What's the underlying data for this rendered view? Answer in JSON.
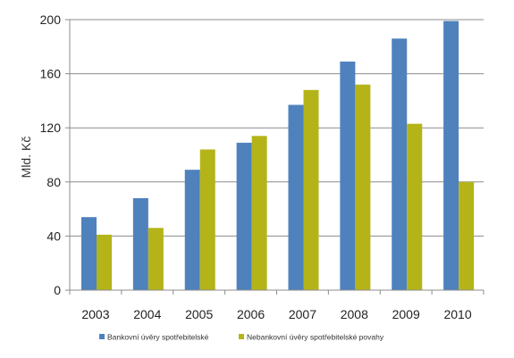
{
  "chart_data": {
    "type": "bar",
    "title": "",
    "xlabel": "",
    "ylabel": "Mld. Kč",
    "categories": [
      "2003",
      "2004",
      "2005",
      "2006",
      "2007",
      "2008",
      "2009",
      "2010"
    ],
    "series": [
      {
        "name": "Bankovní úvěry spotřebitelské",
        "color": "#4F81BD",
        "values": [
          54,
          68,
          89,
          109,
          137,
          169,
          186,
          199
        ]
      },
      {
        "name": "Nebankovní úvěry spotřebitelské povahy",
        "color": "#B4B418",
        "values": [
          41,
          46,
          104,
          114,
          148,
          152,
          123,
          80
        ]
      }
    ],
    "ylim": [
      0,
      200
    ],
    "yticks": [
      0,
      40,
      80,
      120,
      160,
      200
    ],
    "grid": true,
    "legend_position": "bottom"
  }
}
